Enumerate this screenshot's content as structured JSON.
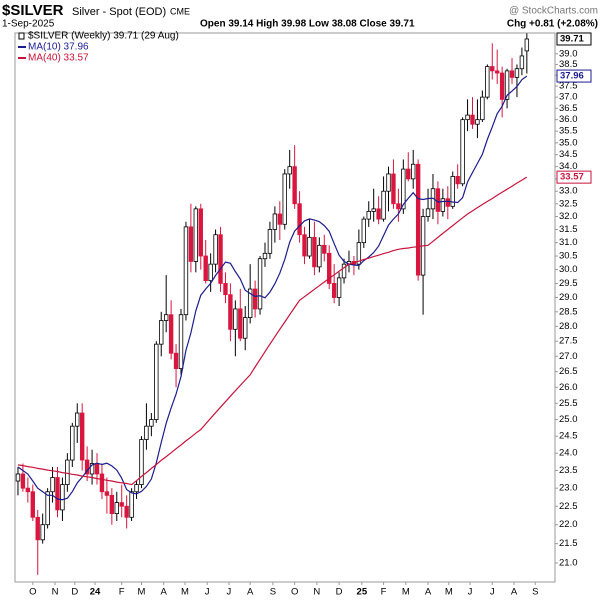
{
  "header": {
    "symbol": "$SILVER",
    "name": "Silver - Spot (EOD)",
    "exchange": "CME",
    "date": "1-Sep-2025",
    "ohlc": "Open 39.14 High 39.98 Low 38.08 Close 39.71",
    "change": "Chg +0.81 (+2.08%)",
    "source": "@ StockCharts.com"
  },
  "chart_data": {
    "type": "candlestick",
    "log_scale": true,
    "grid": false,
    "candles": {
      "name": "$SILVER (Weekly) 39.71 (29 Aug)",
      "flag": "39.71",
      "up_color": "#000000",
      "down_color": "#d9163f",
      "open": [
        23.2,
        23.4,
        23.0,
        22.9,
        22.2,
        21.6,
        22.0,
        22.9,
        23.3,
        22.4,
        23.1,
        23.8,
        24.8,
        25.2,
        23.8,
        23.4,
        23.7,
        23.4,
        22.9,
        22.8,
        22.3,
        22.6,
        22.5,
        22.2,
        22.9,
        23.1,
        24.4,
        24.8,
        25.0,
        27.4,
        28.2,
        28.4,
        27.1,
        26.6,
        28.4,
        31.6,
        30.3,
        32.3,
        30.5,
        29.6,
        30.2,
        31.3,
        29.5,
        29.1,
        27.9,
        28.6,
        27.6,
        28.3,
        29.3,
        28.6,
        30.4,
        30.6,
        31.5,
        32.1,
        31.7,
        33.7,
        34.0,
        32.5,
        31.3,
        30.5,
        31.2,
        30.1,
        30.9,
        30.6,
        29.5,
        29.0,
        29.7,
        30.2,
        30.3,
        30.2,
        31.0,
        31.9,
        32.2,
        32.3,
        31.9,
        33.0,
        33.7,
        32.5,
        32.3,
        33.9,
        33.5,
        34.1,
        29.8,
        32.0,
        32.3,
        33.1,
        32.2,
        32.7,
        32.4,
        33.6,
        33.3,
        36.0,
        36.2,
        35.8,
        36.0,
        37.0,
        38.4,
        38.2,
        38.1,
        36.9,
        38.2,
        37.9,
        38.3,
        39.14
      ],
      "high": [
        23.6,
        23.7,
        23.3,
        23.1,
        22.4,
        22.3,
        23.0,
        23.6,
        23.6,
        23.3,
        24.0,
        24.9,
        25.5,
        25.5,
        24.2,
        24.1,
        24.0,
        23.7,
        23.3,
        23.0,
        22.9,
        23.1,
        22.8,
        23.0,
        23.2,
        24.5,
        25.5,
        25.2,
        27.5,
        28.5,
        29.8,
        28.9,
        27.4,
        28.6,
        31.8,
        32.5,
        32.4,
        32.5,
        31.1,
        30.6,
        31.5,
        31.6,
        29.9,
        29.5,
        28.9,
        29.3,
        28.7,
        30.2,
        29.6,
        30.5,
        31.0,
        31.8,
        32.4,
        32.6,
        33.9,
        34.7,
        34.9,
        33.0,
        31.6,
        31.9,
        31.8,
        31.2,
        31.3,
        30.9,
        30.2,
        29.9,
        30.4,
        30.7,
        30.5,
        31.5,
        32.0,
        32.6,
        33.1,
        32.8,
        33.6,
        34.0,
        34.3,
        33.1,
        34.3,
        34.6,
        34.7,
        34.3,
        32.3,
        33.1,
        33.7,
        33.4,
        33.1,
        33.2,
        33.8,
        34.1,
        36.1,
        36.9,
        37.0,
        36.9,
        37.3,
        38.5,
        39.5,
        39.2,
        38.4,
        38.3,
        38.8,
        38.5,
        39.3,
        39.98
      ],
      "low": [
        22.8,
        22.9,
        22.6,
        22.1,
        20.7,
        21.5,
        21.9,
        22.6,
        22.2,
        22.1,
        22.9,
        23.6,
        24.3,
        23.5,
        23.2,
        23.1,
        23.1,
        22.7,
        22.3,
        22.0,
        22.1,
        22.2,
        21.9,
        22.1,
        22.7,
        23.0,
        24.1,
        24.5,
        24.9,
        27.0,
        27.8,
        26.9,
        26.0,
        26.4,
        28.2,
        29.9,
        29.9,
        30.0,
        29.5,
        29.2,
        29.9,
        29.2,
        28.8,
        27.5,
        27.0,
        27.5,
        27.2,
        28.1,
        28.3,
        28.4,
        30.1,
        30.4,
        31.0,
        31.1,
        31.5,
        33.1,
        32.3,
        31.0,
        30.2,
        30.4,
        29.8,
        29.9,
        30.3,
        29.3,
        28.8,
        28.7,
        29.5,
        29.9,
        29.8,
        30.0,
        30.8,
        31.6,
        31.8,
        31.7,
        31.8,
        32.2,
        32.3,
        31.8,
        32.1,
        33.4,
        33.1,
        29.6,
        28.4,
        31.8,
        31.9,
        31.7,
        32.0,
        31.9,
        32.3,
        33.1,
        33.2,
        35.5,
        35.6,
        35.2,
        35.9,
        36.9,
        37.8,
        37.6,
        36.1,
        36.5,
        37.6,
        37.0,
        38.0,
        38.08
      ],
      "close": [
        23.4,
        23.0,
        22.9,
        22.2,
        21.6,
        22.0,
        22.9,
        23.3,
        22.4,
        23.1,
        23.8,
        24.8,
        25.2,
        23.8,
        23.4,
        23.7,
        23.4,
        22.9,
        22.8,
        22.3,
        22.6,
        22.5,
        22.2,
        22.9,
        23.1,
        24.4,
        24.8,
        25.0,
        27.4,
        28.2,
        28.4,
        27.1,
        26.6,
        28.4,
        31.6,
        30.3,
        32.3,
        30.5,
        29.6,
        30.2,
        31.3,
        29.5,
        29.1,
        27.9,
        28.6,
        27.6,
        28.3,
        29.3,
        28.6,
        30.4,
        30.6,
        31.5,
        32.1,
        31.7,
        33.7,
        34.0,
        32.5,
        31.3,
        30.5,
        31.2,
        30.1,
        30.9,
        30.6,
        29.5,
        29.0,
        29.7,
        30.2,
        30.3,
        30.2,
        31.0,
        31.9,
        32.2,
        32.3,
        31.9,
        33.0,
        33.7,
        32.5,
        32.3,
        33.9,
        33.5,
        34.1,
        29.8,
        32.0,
        32.3,
        33.1,
        32.2,
        32.7,
        32.4,
        33.6,
        33.3,
        36.0,
        36.2,
        35.8,
        36.0,
        37.0,
        38.4,
        38.2,
        38.1,
        36.9,
        38.2,
        37.9,
        38.3,
        38.9,
        39.71
      ]
    },
    "series": [
      {
        "name": "MA(10) 37.96",
        "color": "#1c1c8f",
        "flag": "37.96",
        "values": [
          23.6,
          23.5,
          23.4,
          23.2,
          23.0,
          22.9,
          22.8,
          22.8,
          22.7,
          22.68,
          22.72,
          22.9,
          23.15,
          23.31,
          23.49,
          23.66,
          23.71,
          23.67,
          23.71,
          23.63,
          23.51,
          23.28,
          22.96,
          22.87,
          22.84,
          22.91,
          23.05,
          23.26,
          23.72,
          24.31,
          24.89,
          25.35,
          25.79,
          26.34,
          27.19,
          27.78,
          28.53,
          29.08,
          29.3,
          29.5,
          29.79,
          30.03,
          30.28,
          30.23,
          29.93,
          29.66,
          29.26,
          29.14,
          29.04,
          29.06,
          28.99,
          29.19,
          29.49,
          29.87,
          30.38,
          31.02,
          31.44,
          31.64,
          31.83,
          31.91,
          31.86,
          31.8,
          31.65,
          31.43,
          30.96,
          30.53,
          30.3,
          30.2,
          30.17,
          30.15,
          30.33,
          30.46,
          30.63,
          30.87,
          31.27,
          31.67,
          31.9,
          32.1,
          32.47,
          32.72,
          32.94,
          32.7,
          32.67,
          32.71,
          32.72,
          32.57,
          32.59,
          32.6,
          32.57,
          32.55,
          32.74,
          33.38,
          33.76,
          34.13,
          34.52,
          35.14,
          35.69,
          36.26,
          36.59,
          37.08,
          37.27,
          37.48,
          37.79,
          37.96
        ]
      },
      {
        "name": "MA(40) 33.57",
        "color": "#c8143c",
        "flag": "33.57",
        "values": [
          23.66,
          23.64,
          23.61,
          23.59,
          23.56,
          23.54,
          23.51,
          23.49,
          23.47,
          23.44,
          23.42,
          23.39,
          23.37,
          23.34,
          23.32,
          23.3,
          23.27,
          23.25,
          23.22,
          23.2,
          23.17,
          23.15,
          23.13,
          23.1,
          23.21,
          23.33,
          23.44,
          23.56,
          23.67,
          23.79,
          23.9,
          24.01,
          24.13,
          24.24,
          24.36,
          24.47,
          24.59,
          24.7,
          24.87,
          25.04,
          25.21,
          25.38,
          25.55,
          25.72,
          25.89,
          26.06,
          26.23,
          26.4,
          26.65,
          26.9,
          27.15,
          27.4,
          27.65,
          27.9,
          28.15,
          28.4,
          28.65,
          28.9,
          29.03,
          29.16,
          29.29,
          29.42,
          29.55,
          29.68,
          29.81,
          29.94,
          30.07,
          30.2,
          30.26,
          30.31,
          30.37,
          30.42,
          30.48,
          30.53,
          30.59,
          30.64,
          30.7,
          30.75,
          30.78,
          30.8,
          30.83,
          30.85,
          30.88,
          30.9,
          31.05,
          31.2,
          31.35,
          31.5,
          31.65,
          31.8,
          31.95,
          32.1,
          32.22,
          32.35,
          32.47,
          32.59,
          32.71,
          32.84,
          32.96,
          33.08,
          33.2,
          33.33,
          33.45,
          33.57
        ]
      }
    ],
    "xlim": [
      -0.6,
      108.7
    ],
    "xticks": [
      {
        "value": 3,
        "label": "O"
      },
      {
        "value": 7.5,
        "label": "N"
      },
      {
        "value": 11.5,
        "label": "D"
      },
      {
        "value": 15.6,
        "label": "24",
        "bold": true
      },
      {
        "value": 21,
        "label": "F"
      },
      {
        "value": 25,
        "label": "M"
      },
      {
        "value": 29.5,
        "label": "A"
      },
      {
        "value": 33.8,
        "label": "M"
      },
      {
        "value": 38.3,
        "label": "J"
      },
      {
        "value": 42.7,
        "label": "J"
      },
      {
        "value": 47,
        "label": "A"
      },
      {
        "value": 51.6,
        "label": "S"
      },
      {
        "value": 56,
        "label": "O"
      },
      {
        "value": 60.5,
        "label": "N"
      },
      {
        "value": 65,
        "label": "D"
      },
      {
        "value": 69.6,
        "label": "25",
        "bold": true
      },
      {
        "value": 74,
        "label": "F"
      },
      {
        "value": 78.5,
        "label": "M"
      },
      {
        "value": 83,
        "label": "A"
      },
      {
        "value": 87.2,
        "label": "M"
      },
      {
        "value": 91.5,
        "label": "J"
      },
      {
        "value": 96,
        "label": "J"
      },
      {
        "value": 100.4,
        "label": "A"
      },
      {
        "value": 104.7,
        "label": "S"
      }
    ],
    "ylim": [
      20.52,
      40.0
    ],
    "yticks": [
      {
        "value": 21,
        "label": "21.0"
      },
      21.5,
      {
        "value": 22,
        "label": "22.0"
      },
      22.5,
      {
        "value": 23,
        "label": "23.0"
      },
      23.5,
      {
        "value": 24,
        "label": "24.0"
      },
      24.5,
      {
        "value": 25,
        "label": "25.0"
      },
      25.5,
      {
        "value": 26,
        "label": "26.0"
      },
      26.5,
      {
        "value": 27,
        "label": "27.0"
      },
      27.5,
      {
        "value": 28,
        "label": "28.0"
      },
      28.5,
      {
        "value": 29,
        "label": "29.0"
      },
      29.5,
      {
        "value": 30,
        "label": "30.0"
      },
      30.5,
      {
        "value": 31,
        "label": "31.0"
      },
      31.5,
      {
        "value": 32,
        "label": "32.0"
      },
      32.5,
      {
        "value": 33,
        "label": "33.0"
      },
      33.5,
      {
        "value": 34,
        "label": "34.0"
      },
      34.5,
      {
        "value": 35,
        "label": "35.0"
      },
      35.5,
      {
        "value": 36,
        "label": "36.0"
      },
      36.5,
      {
        "value": 37,
        "label": "37.0"
      },
      37.5,
      {
        "value": 38,
        "label": "38.0"
      },
      38.5,
      {
        "value": 39,
        "label": "39.0"
      }
    ]
  }
}
